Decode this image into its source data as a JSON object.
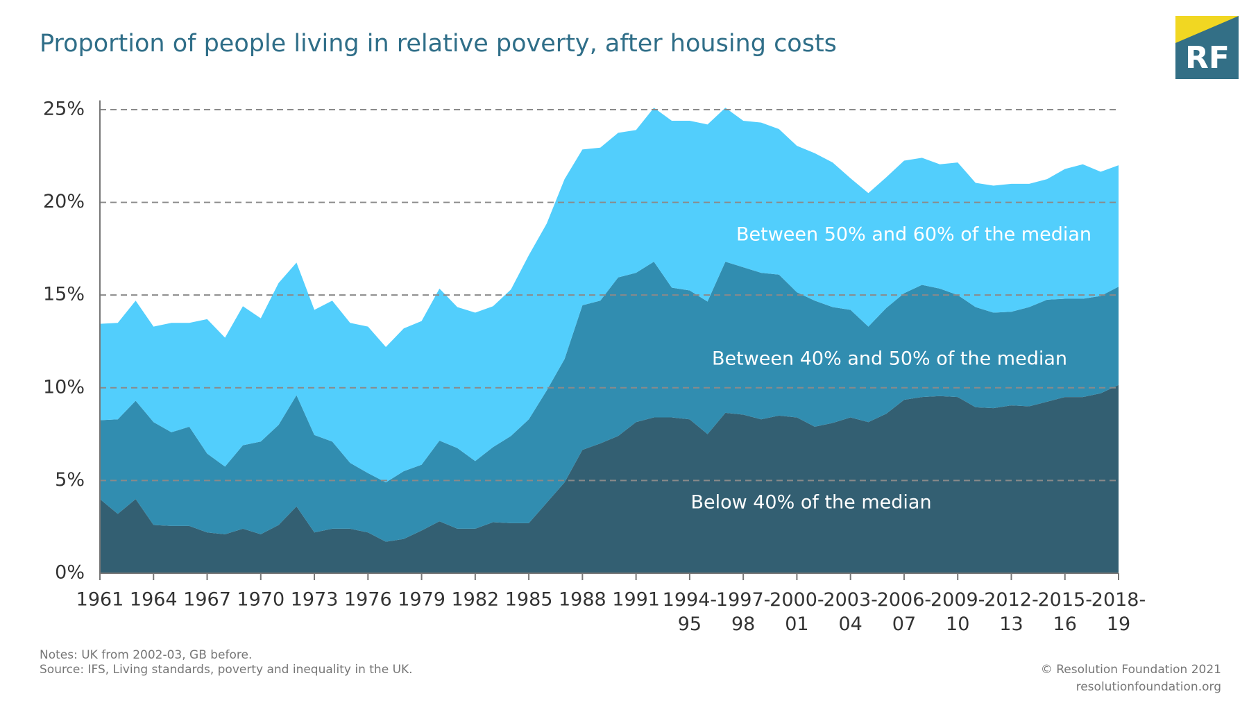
{
  "chart_data": {
    "type": "stacked-area",
    "title": "Proportion of people living in relative poverty, after housing costs",
    "logo": "RF",
    "notes": "Notes: UK from 2002-03, GB before.",
    "source": "Source: IFS, Living standards, poverty and inequality in the UK.",
    "copyright": "© Resolution Foundation 2021",
    "website": "resolutionfoundation.org",
    "categories": [
      "1961",
      null,
      null,
      "1964",
      null,
      null,
      "1967",
      null,
      null,
      "1970",
      null,
      null,
      "1973",
      null,
      null,
      "1976",
      null,
      null,
      "1979",
      null,
      null,
      "1982",
      null,
      null,
      "1985",
      null,
      null,
      "1988",
      null,
      null,
      "1991",
      null,
      null,
      "1994-95",
      null,
      null,
      "1997-98",
      null,
      null,
      "2000-01",
      null,
      null,
      "2003-04",
      null,
      null,
      "2006-07",
      null,
      null,
      "2009-10",
      null,
      null,
      "2012-13",
      null,
      null,
      "2015-16",
      null,
      null,
      "2018-19"
    ],
    "series": [
      {
        "name": "Below 40% of the median",
        "color": "#335f72",
        "values": [
          4.0,
          3.2,
          4.0,
          2.6,
          2.55,
          2.55,
          2.2,
          2.1,
          2.4,
          2.1,
          2.6,
          3.6,
          2.2,
          2.4,
          2.4,
          2.2,
          1.7,
          1.85,
          2.3,
          2.8,
          2.4,
          2.4,
          2.75,
          2.7,
          2.7,
          3.8,
          4.9,
          6.65,
          7.0,
          7.4,
          8.15,
          8.4,
          8.4,
          8.3,
          7.5,
          8.65,
          8.55,
          8.3,
          8.5,
          8.4,
          7.9,
          8.1,
          8.4,
          8.15,
          8.6,
          9.35,
          9.5,
          9.55,
          9.5,
          8.95,
          8.9,
          9.05,
          9.0,
          9.25,
          9.5,
          9.5,
          9.7,
          10.15
        ]
      },
      {
        "name": "Between 40% and 50% of the median",
        "color": "#318db0",
        "values": [
          4.25,
          5.1,
          5.3,
          5.55,
          5.05,
          5.35,
          4.25,
          3.65,
          4.5,
          5.0,
          5.4,
          6.0,
          5.25,
          4.7,
          3.55,
          3.2,
          3.2,
          3.65,
          3.55,
          4.35,
          4.35,
          3.65,
          4.05,
          4.7,
          5.6,
          6.05,
          6.65,
          7.8,
          7.7,
          8.55,
          8.05,
          8.4,
          7.0,
          6.95,
          7.15,
          8.15,
          7.95,
          7.9,
          7.6,
          6.75,
          6.8,
          6.25,
          5.8,
          5.15,
          5.7,
          5.75,
          6.05,
          5.8,
          5.5,
          5.4,
          5.15,
          5.05,
          5.35,
          5.5,
          5.3,
          5.3,
          5.25,
          5.3
        ]
      },
      {
        "name": "Between 50% and 60% of the median",
        "color": "#52cefc",
        "values": [
          5.2,
          5.2,
          5.4,
          5.15,
          5.9,
          5.6,
          7.25,
          6.95,
          7.5,
          6.65,
          7.65,
          7.15,
          6.75,
          7.6,
          7.55,
          7.9,
          7.3,
          7.7,
          7.75,
          8.2,
          7.6,
          8.0,
          7.6,
          7.9,
          8.85,
          9.0,
          9.7,
          8.4,
          8.25,
          7.8,
          7.7,
          8.3,
          9.0,
          9.15,
          9.55,
          8.3,
          7.9,
          8.1,
          7.85,
          7.9,
          7.95,
          7.8,
          7.1,
          7.2,
          7.05,
          7.15,
          6.85,
          6.7,
          7.15,
          6.7,
          6.85,
          6.9,
          6.65,
          6.5,
          7.0,
          7.25,
          6.7,
          6.55
        ]
      }
    ],
    "ylim": [
      0,
      25.5
    ],
    "yticks": [
      {
        "value": 0,
        "label": "0%"
      },
      {
        "value": 5,
        "label": "5%"
      },
      {
        "value": 10,
        "label": "10%"
      },
      {
        "value": 15,
        "label": "15%"
      },
      {
        "value": 20,
        "label": "20%"
      },
      {
        "value": 25,
        "label": "25%"
      }
    ],
    "grid": true
  }
}
